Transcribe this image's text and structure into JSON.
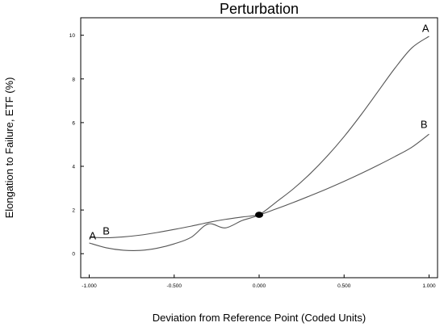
{
  "chart_data": {
    "type": "line",
    "title": "Perturbation",
    "xlabel": "Deviation from Reference Point (Coded Units)",
    "ylabel": "Elongation to Failure, ETF (%)",
    "xlim": [
      -1.05,
      1.05
    ],
    "ylim": [
      -1.1,
      10.8
    ],
    "x_ticks": [
      {
        "value": -1.0,
        "label": "-1.000"
      },
      {
        "value": -0.5,
        "label": "-0.500"
      },
      {
        "value": 0.0,
        "label": "0.000"
      },
      {
        "value": 0.5,
        "label": "0.500"
      },
      {
        "value": 1.0,
        "label": "1.000"
      }
    ],
    "y_ticks": [
      {
        "value": 0,
        "label": "0"
      },
      {
        "value": 2,
        "label": "2"
      },
      {
        "value": 4,
        "label": "4"
      },
      {
        "value": 6,
        "label": "6"
      },
      {
        "value": 8,
        "label": "8"
      },
      {
        "value": 10,
        "label": "10"
      }
    ],
    "series": [
      {
        "name": "A",
        "color": "#555555",
        "x": [
          -1.0,
          -0.9,
          -0.8,
          -0.7,
          -0.6,
          -0.5,
          -0.4,
          -0.3,
          -0.2,
          -0.1,
          0.0,
          0.1,
          0.2,
          0.3,
          0.4,
          0.5,
          0.6,
          0.7,
          0.8,
          0.9,
          1.0
        ],
        "y": [
          0.49,
          0.27,
          0.16,
          0.15,
          0.25,
          0.45,
          0.75,
          1.36,
          1.18,
          1.52,
          1.78,
          2.36,
          2.96,
          3.66,
          4.46,
          5.36,
          6.36,
          7.43,
          8.5,
          9.43,
          9.95
        ]
      },
      {
        "name": "B",
        "color": "#555555",
        "x": [
          -1.0,
          -0.9,
          -0.8,
          -0.7,
          -0.6,
          -0.5,
          -0.4,
          -0.3,
          -0.2,
          -0.1,
          0.0,
          0.1,
          0.2,
          0.3,
          0.4,
          0.5,
          0.6,
          0.7,
          0.8,
          0.9,
          1.0
        ],
        "y": [
          0.75,
          0.73,
          0.77,
          0.85,
          0.97,
          1.11,
          1.26,
          1.43,
          1.57,
          1.68,
          1.78,
          2.05,
          2.34,
          2.65,
          2.97,
          3.31,
          3.67,
          4.05,
          4.45,
          4.88,
          5.47
        ]
      }
    ],
    "curve_labels": [
      {
        "text": "A",
        "x": -0.98,
        "y": 0.65
      },
      {
        "text": "B",
        "x": -0.9,
        "y": 0.88
      },
      {
        "text": "A",
        "x": 0.98,
        "y": 10.15
      },
      {
        "text": "B",
        "x": 0.97,
        "y": 5.75
      }
    ],
    "reference_point": {
      "x": 0.0,
      "y": 1.78
    },
    "grid": false,
    "legend": "none"
  }
}
